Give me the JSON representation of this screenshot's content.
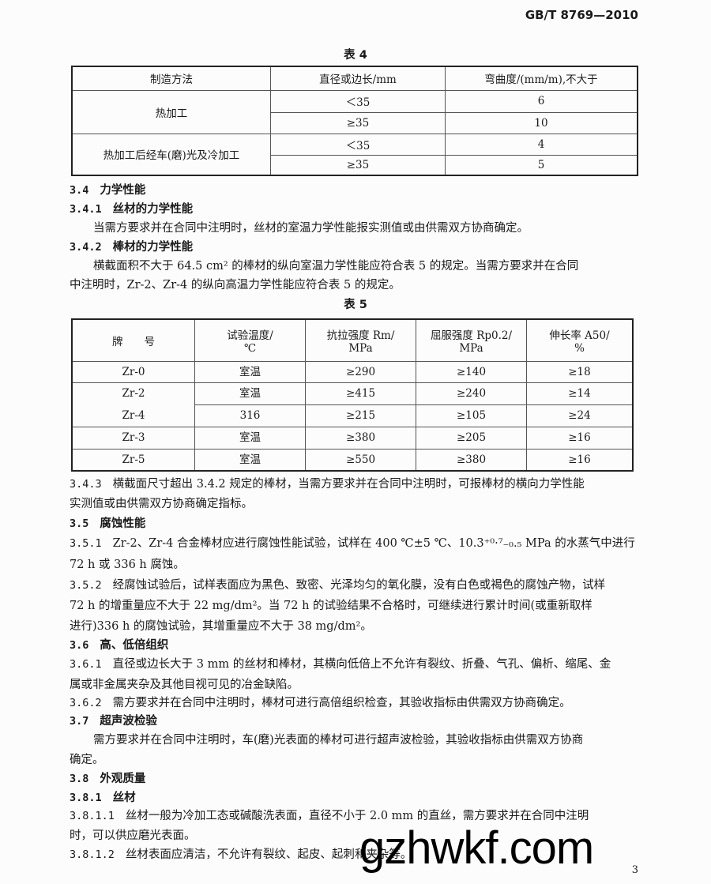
{
  "header": "GB/T 8769—2010",
  "table4": {
    "title": "表 4",
    "headers": [
      "制造方法",
      "直径或边长/mm",
      "弯曲度/(mm/m),不大于"
    ],
    "rows": [
      {
        "method": "热加工",
        "items": [
          [
            "＜35",
            "6"
          ],
          [
            "≥35",
            "10"
          ]
        ]
      },
      {
        "method": "热加工后经车(磨)光及冷加工",
        "items": [
          [
            "＜35",
            "4"
          ],
          [
            "≥35",
            "5"
          ]
        ]
      }
    ]
  },
  "s34": {
    "num": "3.4",
    "title": "力学性能"
  },
  "s341": {
    "num": "3.4.1",
    "title": "丝材的力学性能"
  },
  "s341_text": "当需方要求并在合同中注明时，丝材的室温力学性能报实测值或由供需双方协商确定。",
  "s342": {
    "num": "3.4.2",
    "title": "棒材的力学性能"
  },
  "s342_text1": "横截面积不大于 64.5 cm² 的棒材的纵向室温力学性能应符合表 5 的规定。当需方要求并在合同",
  "s342_text2": "中注明时，Zr-2、Zr-4 的纵向高温力学性能应符合表 5 的规定。",
  "table5": {
    "title": "表 5",
    "headers": [
      [
        "牌　　号"
      ],
      [
        "试验温度/",
        "℃"
      ],
      [
        "抗拉强度 Rm/",
        "MPa"
      ],
      [
        "屈服强度 Rp0.2/",
        "MPa"
      ],
      [
        "伸长率 A50/",
        "%"
      ]
    ],
    "rows": [
      [
        "Zr-0",
        "室温",
        "≥290",
        "≥140",
        "≥18"
      ],
      [
        "Zr-2\nZr-4",
        "室温",
        "≥415",
        "≥240",
        "≥14"
      ],
      [
        "",
        "316",
        "≥215",
        "≥105",
        "≥24"
      ],
      [
        "Zr-3",
        "室温",
        "≥380",
        "≥205",
        "≥16"
      ],
      [
        "Zr-5",
        "室温",
        "≥550",
        "≥380",
        "≥16"
      ]
    ]
  },
  "lines": [
    {
      "num": "3.4.3",
      "text": "横截面尺寸超出 3.4.2 规定的棒材，当需方要求并在合同中注明时，可报棒材的横向力学性能"
    },
    {
      "text": "实测值或由供需双方协商确定指标。"
    },
    {
      "num": "3.5",
      "text": "腐蚀性能",
      "bold": true
    },
    {
      "num": "3.5.1",
      "text": "Zr-2、Zr-4 合金棒材应进行腐蚀性能试验，试样在 400 ℃±5 ℃、10.3⁺⁰·⁷₋₀.₅ MPa 的水蒸气中进行"
    },
    {
      "text": "72 h 或 336 h 腐蚀。"
    },
    {
      "num": "3.5.2",
      "text": "经腐蚀试验后，试样表面应为黑色、致密、光泽均匀的氧化膜，没有白色或褐色的腐蚀产物，试样"
    },
    {
      "text": "72 h 的增重量应不大于 22 mg/dm²。当 72 h 的试验结果不合格时，可继续进行累计时间(或重新取样"
    },
    {
      "text": "进行)336 h 的腐蚀试验，其增重量应不大于 38 mg/dm²。"
    },
    {
      "num": "3.6",
      "text": "高、低倍组织",
      "bold": true
    },
    {
      "num": "3.6.1",
      "text": "直径或边长大于 3 mm 的丝材和棒材，其横向低倍上不允许有裂纹、折叠、气孔、偏析、缩尾、金"
    },
    {
      "text": "属或非金属夹杂及其他目视可见的冶金缺陷。"
    },
    {
      "num": "3.6.2",
      "text": "需方要求并在合同中注明时，棒材可进行高倍组织检查，其验收指标由供需双方协商确定。"
    },
    {
      "num": "3.7",
      "text": "超声波检验",
      "bold": true
    },
    {
      "text": "需方要求并在合同中注明时，车(磨)光表面的棒材可进行超声波检验，其验收指标由供需双方协商",
      "indent": true
    },
    {
      "text": "确定。"
    },
    {
      "num": "3.8",
      "text": "外观质量",
      "bold": true
    },
    {
      "num": "3.8.1",
      "text": "丝材",
      "bold": true
    },
    {
      "num": "3.8.1.1",
      "text": "丝材一般为冷加工态或碱酸洗表面，直径不小于 2.0 mm 的直丝，需方要求并在合同中注明"
    },
    {
      "text": "时，可以供应磨光表面。"
    },
    {
      "num": "3.8.1.2",
      "text": "丝材表面应清洁，不允许有裂纹、起皮、起刺和夹杂等。"
    }
  ],
  "watermark": "gzhwkf.com",
  "page_number": "3"
}
